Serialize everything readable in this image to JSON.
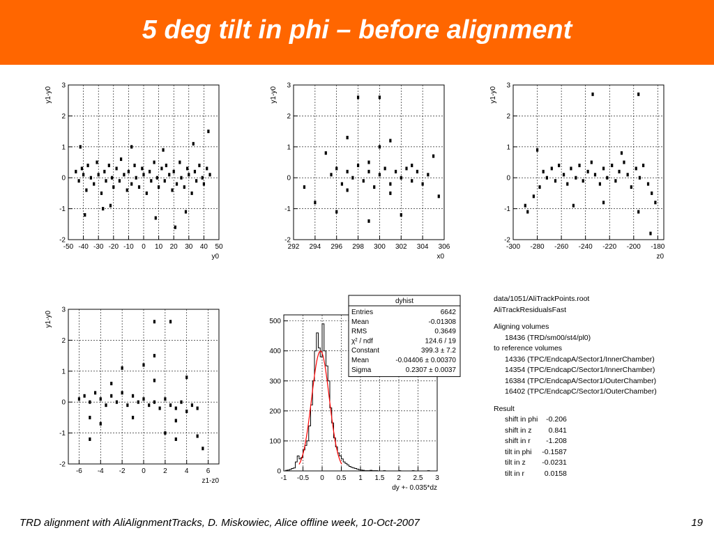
{
  "slide": {
    "title": "5 deg tilt in phi – before alignment",
    "footer": "TRD alignment with AliAlignmentTracks,  D. Miskowiec, Alice offline week, 10-Oct-2007",
    "page": "19"
  },
  "colors": {
    "header": "#ff6600",
    "fit": "#ff0000",
    "ink": "#000000"
  },
  "chart_data": [
    {
      "type": "scatter",
      "xlabel": "y0",
      "ylabel": "y1-y0",
      "xlim": [
        -50,
        50
      ],
      "ylim": [
        -2,
        3
      ],
      "xticks": [
        -50,
        -40,
        -30,
        -20,
        -10,
        0,
        10,
        20,
        30,
        40,
        50
      ],
      "xtick_labels": [
        "-50",
        "-40",
        "-30",
        "-20",
        "-10",
        "0",
        "10",
        "20",
        "30",
        "40",
        "50"
      ],
      "yticks": [
        -2,
        -1,
        0,
        1,
        2,
        3
      ],
      "ytick_labels": [
        "-2",
        "-1",
        "0",
        "1",
        "2",
        "3"
      ],
      "grid": true,
      "points": [
        [
          -45,
          0.2
        ],
        [
          -43,
          -0.1
        ],
        [
          -41,
          0.3
        ],
        [
          -40,
          0.1
        ],
        [
          -38,
          -0.4
        ],
        [
          -37,
          0.4
        ],
        [
          -35,
          0.0
        ],
        [
          -33,
          -0.2
        ],
        [
          -31,
          0.5
        ],
        [
          -30,
          0.1
        ],
        [
          -28,
          -0.5
        ],
        [
          -26,
          0.2
        ],
        [
          -25,
          -0.1
        ],
        [
          -23,
          0.4
        ],
        [
          -21,
          0.0
        ],
        [
          -20,
          -0.3
        ],
        [
          -18,
          0.3
        ],
        [
          -16,
          -0.1
        ],
        [
          -15,
          0.6
        ],
        [
          -13,
          0.1
        ],
        [
          -11,
          -0.4
        ],
        [
          -10,
          0.2
        ],
        [
          -8,
          -0.2
        ],
        [
          -6,
          0.4
        ],
        [
          -5,
          0.0
        ],
        [
          -3,
          -0.3
        ],
        [
          -1,
          0.3
        ],
        [
          0,
          0.1
        ],
        [
          2,
          -0.5
        ],
        [
          4,
          0.2
        ],
        [
          5,
          -0.1
        ],
        [
          7,
          0.5
        ],
        [
          9,
          0.0
        ],
        [
          10,
          -0.3
        ],
        [
          12,
          0.3
        ],
        [
          14,
          -0.1
        ],
        [
          15,
          0.4
        ],
        [
          17,
          0.1
        ],
        [
          19,
          -0.4
        ],
        [
          20,
          0.2
        ],
        [
          22,
          -0.2
        ],
        [
          24,
          0.5
        ],
        [
          25,
          0.0
        ],
        [
          27,
          -0.3
        ],
        [
          29,
          0.3
        ],
        [
          30,
          0.1
        ],
        [
          32,
          -0.5
        ],
        [
          34,
          0.2
        ],
        [
          35,
          -0.1
        ],
        [
          37,
          0.4
        ],
        [
          39,
          0.0
        ],
        [
          40,
          -0.2
        ],
        [
          42,
          0.3
        ],
        [
          44,
          0.1
        ],
        [
          -39,
          -1.2
        ],
        [
          -22,
          -0.9
        ],
        [
          -8,
          1.0
        ],
        [
          8,
          -1.3
        ],
        [
          21,
          -1.6
        ],
        [
          33,
          1.1
        ],
        [
          43,
          1.5
        ],
        [
          -42,
          1.0
        ],
        [
          -27,
          -1.0
        ],
        [
          13,
          0.9
        ],
        [
          28,
          -1.1
        ]
      ]
    },
    {
      "type": "scatter",
      "xlabel": "x0",
      "ylabel": "y1-y0",
      "xlim": [
        292,
        306
      ],
      "ylim": [
        -2,
        3
      ],
      "xticks": [
        292,
        294,
        296,
        298,
        300,
        302,
        304,
        306
      ],
      "xtick_labels": [
        "292",
        "294",
        "296",
        "298",
        "300",
        "302",
        "304",
        "306"
      ],
      "yticks": [
        -2,
        -1,
        0,
        1,
        2,
        3
      ],
      "ytick_labels": [
        "-2",
        "-1",
        "0",
        "1",
        "2",
        "3"
      ],
      "grid": true,
      "points": [
        [
          295.5,
          0.1
        ],
        [
          296,
          0.3
        ],
        [
          296.5,
          -0.2
        ],
        [
          297,
          0.2
        ],
        [
          297.5,
          0.0
        ],
        [
          298,
          0.4
        ],
        [
          298.5,
          -0.1
        ],
        [
          299,
          0.2
        ],
        [
          299.5,
          -0.3
        ],
        [
          300,
          0.1
        ],
        [
          300.5,
          0.3
        ],
        [
          301,
          -0.2
        ],
        [
          301.5,
          0.2
        ],
        [
          302,
          0.0
        ],
        [
          302.5,
          0.3
        ],
        [
          303,
          -0.1
        ],
        [
          303.5,
          0.2
        ],
        [
          304,
          -0.2
        ],
        [
          304.5,
          0.1
        ],
        [
          297,
          -0.4
        ],
        [
          299,
          0.5
        ],
        [
          301,
          -0.5
        ],
        [
          303,
          0.4
        ],
        [
          294,
          -0.8
        ],
        [
          295,
          0.8
        ],
        [
          296,
          -1.1
        ],
        [
          300,
          1.0
        ],
        [
          302,
          -1.2
        ],
        [
          305,
          0.7
        ],
        [
          297,
          1.3
        ],
        [
          299,
          -1.4
        ],
        [
          301,
          1.2
        ],
        [
          298,
          2.6
        ],
        [
          300,
          2.6
        ],
        [
          293,
          -0.3
        ],
        [
          305.5,
          -0.6
        ]
      ]
    },
    {
      "type": "scatter",
      "xlabel": "z0",
      "ylabel": "y1-y0",
      "xlim": [
        -300,
        -175
      ],
      "ylim": [
        -2,
        3
      ],
      "xticks": [
        -300,
        -280,
        -260,
        -240,
        -220,
        -200,
        -180
      ],
      "xtick_labels": [
        "-300",
        "-280",
        "-260",
        "-240",
        "-220",
        "-200",
        "-180"
      ],
      "yticks": [
        -2,
        -1,
        0,
        1,
        2,
        3
      ],
      "ytick_labels": [
        "-2",
        "-1",
        "0",
        "1",
        "2",
        "3"
      ],
      "grid": true,
      "points": [
        [
          -278,
          -0.3
        ],
        [
          -275,
          0.2
        ],
        [
          -272,
          0.0
        ],
        [
          -268,
          0.3
        ],
        [
          -265,
          -0.1
        ],
        [
          -262,
          0.4
        ],
        [
          -258,
          0.1
        ],
        [
          -255,
          -0.2
        ],
        [
          -252,
          0.3
        ],
        [
          -248,
          0.0
        ],
        [
          -245,
          0.4
        ],
        [
          -242,
          -0.1
        ],
        [
          -238,
          0.2
        ],
        [
          -235,
          0.5
        ],
        [
          -232,
          0.1
        ],
        [
          -228,
          -0.2
        ],
        [
          -225,
          0.3
        ],
        [
          -222,
          0.0
        ],
        [
          -218,
          0.4
        ],
        [
          -215,
          -0.1
        ],
        [
          -212,
          0.2
        ],
        [
          -208,
          0.5
        ],
        [
          -205,
          0.1
        ],
        [
          -202,
          -0.3
        ],
        [
          -198,
          0.3
        ],
        [
          -195,
          0.0
        ],
        [
          -192,
          0.4
        ],
        [
          -188,
          -0.2
        ],
        [
          -185,
          -0.5
        ],
        [
          -182,
          -0.8
        ],
        [
          -290,
          -0.9
        ],
        [
          -288,
          -1.1
        ],
        [
          -283,
          -0.6
        ],
        [
          -280,
          0.9
        ],
        [
          -250,
          -0.9
        ],
        [
          -225,
          -0.8
        ],
        [
          -210,
          0.8
        ],
        [
          -196,
          -1.1
        ],
        [
          -186,
          -1.8
        ],
        [
          -196,
          2.7
        ],
        [
          -234,
          2.7
        ]
      ]
    },
    {
      "type": "scatter",
      "xlabel": "z1-z0",
      "ylabel": "y1-y0",
      "xlim": [
        -7,
        7
      ],
      "ylim": [
        -2,
        3
      ],
      "xticks": [
        -6,
        -4,
        -2,
        0,
        2,
        4,
        6
      ],
      "xtick_labels": [
        "-6",
        "-4",
        "-2",
        "0",
        "2",
        "4",
        "6"
      ],
      "yticks": [
        -2,
        -1,
        0,
        1,
        2,
        3
      ],
      "ytick_labels": [
        "-2",
        "-1",
        "0",
        "1",
        "2",
        "3"
      ],
      "grid": true,
      "points": [
        [
          -6,
          0.1
        ],
        [
          -5.5,
          0.2
        ],
        [
          -5,
          0.0
        ],
        [
          -4.5,
          0.3
        ],
        [
          -4,
          0.1
        ],
        [
          -3.5,
          -0.1
        ],
        [
          -3,
          0.2
        ],
        [
          -2.5,
          0.0
        ],
        [
          -2,
          0.3
        ],
        [
          -1.5,
          -0.1
        ],
        [
          -1,
          0.2
        ],
        [
          -0.5,
          0.0
        ],
        [
          0,
          0.1
        ],
        [
          0.5,
          -0.1
        ],
        [
          1,
          0.0
        ],
        [
          1.5,
          -0.2
        ],
        [
          2,
          0.1
        ],
        [
          2.5,
          -0.1
        ],
        [
          3,
          -0.2
        ],
        [
          3.5,
          0.0
        ],
        [
          4,
          -0.3
        ],
        [
          4.5,
          -0.1
        ],
        [
          5,
          -0.2
        ],
        [
          -3,
          0.6
        ],
        [
          -1,
          -0.5
        ],
        [
          1,
          0.7
        ],
        [
          3,
          -0.6
        ],
        [
          -4,
          -0.7
        ],
        [
          0,
          1.2
        ],
        [
          2,
          -1.0
        ],
        [
          -2,
          1.1
        ],
        [
          4,
          0.8
        ],
        [
          -5,
          -0.5
        ],
        [
          5,
          -1.1
        ],
        [
          1,
          1.5
        ],
        [
          3,
          -1.2
        ],
        [
          1,
          2.6
        ],
        [
          2.5,
          2.6
        ],
        [
          -5,
          -1.2
        ],
        [
          5.5,
          -1.5
        ]
      ]
    },
    {
      "type": "histogram",
      "title": "dyhist",
      "xlabel": "dy +- 0.035*dz",
      "xlim": [
        -1,
        3
      ],
      "ylim": [
        0,
        520
      ],
      "xticks": [
        -1,
        -0.5,
        0,
        0.5,
        1,
        1.5,
        2,
        2.5,
        3
      ],
      "xtick_labels": [
        "-1",
        "-0.5",
        "0",
        "0.5",
        "1",
        "1.5",
        "2",
        "2.5",
        "3"
      ],
      "yticks": [
        0,
        100,
        200,
        300,
        400,
        500
      ],
      "ytick_labels": [
        "0",
        "100",
        "200",
        "300",
        "400",
        "500"
      ],
      "grid": true,
      "bin_start": -1,
      "bin_width": 0.05,
      "counts": [
        0,
        2,
        3,
        5,
        8,
        10,
        30,
        50,
        40,
        45,
        70,
        85,
        100,
        150,
        220,
        300,
        400,
        460,
        410,
        380,
        490,
        400,
        350,
        300,
        210,
        160,
        110,
        80,
        60,
        50,
        40,
        30,
        25,
        20,
        15,
        12,
        10,
        8,
        6,
        4,
        3,
        2,
        1,
        1,
        1,
        2,
        1,
        1,
        1,
        0,
        0,
        0,
        1,
        0,
        0,
        0,
        0,
        0,
        0,
        0,
        1,
        0,
        0,
        0,
        0,
        0,
        0,
        1,
        0,
        0,
        0,
        0,
        0,
        0,
        0,
        1,
        0,
        0,
        0,
        0
      ],
      "fit": {
        "type": "gaussian",
        "constant": 399.3,
        "mean": -0.04406,
        "sigma": 0.2307
      },
      "stats": [
        {
          "label": "Entries",
          "value": "6642"
        },
        {
          "label": "Mean",
          "value": "-0.01308"
        },
        {
          "label": "RMS",
          "value": "0.3649"
        },
        {
          "label": "χ² / ndf",
          "value": "124.6 / 19"
        },
        {
          "label": "Constant",
          "value": "399.3 ± 7.2"
        },
        {
          "label": "Mean",
          "value": "-0.04406 ± 0.00370"
        },
        {
          "label": "Sigma",
          "value": "0.2307 ± 0.0037"
        }
      ]
    }
  ],
  "info": {
    "file": "data/1051/AliTrackPoints.root",
    "method": "AliTrackResidualsFast",
    "aligning_label": "Aligning volumes",
    "aligning": [
      "18436 (TRD/sm00/st4/pl0)"
    ],
    "reference_label": "to reference volumes",
    "reference": [
      "14336 (TPC/EndcapA/Sector1/InnerChamber)",
      "14354 (TPC/EndcapC/Sector1/InnerChamber)",
      "16384 (TPC/EndcapA/Sector1/OuterChamber)",
      "16402 (TPC/EndcapC/Sector1/OuterChamber)"
    ],
    "result_label": "Result",
    "results": [
      {
        "label": "shift in phi",
        "value": "-0.206"
      },
      {
        "label": "shift in z",
        "value": "0.841"
      },
      {
        "label": "shift in r",
        "value": "-1.208"
      },
      {
        "label": "tilt in phi",
        "value": "-0.1587"
      },
      {
        "label": "tilt in z",
        "value": "-0.0231"
      },
      {
        "label": "tilt in r",
        "value": "0.0158"
      }
    ]
  }
}
